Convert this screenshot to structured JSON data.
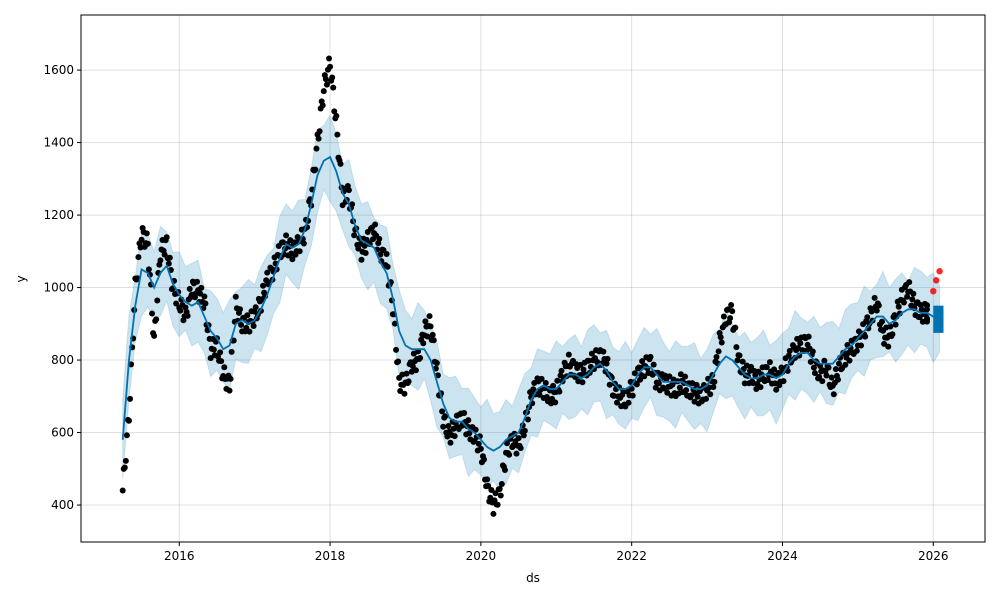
{
  "chart_data": {
    "type": "line",
    "title": "",
    "xlabel": "ds",
    "ylabel": "y",
    "xlim": [
      "2014-09-12",
      "2026-09-08"
    ],
    "ylim": [
      298,
      1752
    ],
    "grid": true,
    "x_ticks": [
      "2016",
      "2018",
      "2020",
      "2022",
      "2024",
      "2026"
    ],
    "y_ticks": [
      400,
      600,
      800,
      1000,
      1200,
      1400,
      1600
    ],
    "colors": {
      "observed": "#000000",
      "test": "#ff0000",
      "forecast": "#0072b2",
      "interval": "#0072b2"
    },
    "interval_halfwidth": 105,
    "observed": {
      "2015-04": 440,
      "2015-05": 650,
      "2015-06": 1000,
      "2015-07": 1150,
      "2015-08": 1120,
      "2015-09": 850,
      "2015-10": 1100,
      "2015-11": 1120,
      "2015-12": 1000,
      "2016-01": 960,
      "2016-02": 920,
      "2016-03": 1000,
      "2016-04": 990,
      "2016-05": 960,
      "2016-06": 830,
      "2016-07": 840,
      "2016-08": 760,
      "2016-09": 730,
      "2016-10": 950,
      "2016-11": 900,
      "2016-12": 900,
      "2017-01": 920,
      "2017-02": 960,
      "2017-03": 1020,
      "2017-04": 1050,
      "2017-05": 1100,
      "2017-06": 1120,
      "2017-07": 1100,
      "2017-08": 1120,
      "2017-09": 1150,
      "2017-10": 1250,
      "2017-11": 1400,
      "2017-12": 1550,
      "2018-01": 1620,
      "2018-02": 1450,
      "2018-03": 1250,
      "2018-04": 1260,
      "2018-05": 1150,
      "2018-06": 1100,
      "2018-07": 1130,
      "2018-08": 1160,
      "2018-09": 1100,
      "2018-10": 1070,
      "2018-11": 950,
      "2018-12": 740,
      "2019-01": 730,
      "2019-02": 790,
      "2019-03": 800,
      "2019-04": 880,
      "2019-05": 900,
      "2019-06": 770,
      "2019-07": 640,
      "2019-08": 590,
      "2019-09": 620,
      "2019-10": 640,
      "2019-11": 610,
      "2019-12": 590,
      "2020-01": 560,
      "2020-02": 450,
      "2020-03": 400,
      "2020-04": 430,
      "2020-05": 540,
      "2020-06": 580,
      "2020-07": 560,
      "2020-08": 620,
      "2020-09": 700,
      "2020-10": 730,
      "2020-11": 720,
      "2020-12": 700,
      "2021-01": 710,
      "2021-02": 760,
      "2021-03": 790,
      "2021-04": 770,
      "2021-05": 760,
      "2021-06": 780,
      "2021-07": 800,
      "2021-08": 810,
      "2021-09": 790,
      "2021-10": 720,
      "2021-11": 700,
      "2021-12": 690,
      "2022-01": 720,
      "2022-02": 760,
      "2022-03": 780,
      "2022-04": 790,
      "2022-05": 740,
      "2022-06": 740,
      "2022-07": 730,
      "2022-08": 720,
      "2022-09": 740,
      "2022-10": 720,
      "2022-11": 710,
      "2022-12": 700,
      "2023-01": 720,
      "2023-02": 740,
      "2023-03": 850,
      "2023-04": 920,
      "2023-05": 930,
      "2023-06": 800,
      "2023-07": 760,
      "2023-08": 760,
      "2023-09": 740,
      "2023-10": 760,
      "2023-11": 770,
      "2023-12": 740,
      "2024-01": 760,
      "2024-02": 800,
      "2024-03": 830,
      "2024-04": 840,
      "2024-05": 850,
      "2024-06": 790,
      "2024-07": 760,
      "2024-08": 780,
      "2024-09": 720,
      "2024-10": 780,
      "2024-11": 810,
      "2024-12": 830,
      "2025-01": 850,
      "2025-02": 880,
      "2025-03": 920,
      "2025-04": 960,
      "2025-05": 870,
      "2025-06": 860,
      "2025-07": 920,
      "2025-08": 970,
      "2025-09": 1000,
      "2025-10": 950,
      "2025-11": 930,
      "2025-12": 930
    },
    "test": {
      "2026-01": 990,
      "2026-01-15": 1020,
      "2026-02": 1045
    },
    "yhat": {
      "2015-04": 580,
      "2015-05": 800,
      "2015-06": 950,
      "2015-07": 1050,
      "2015-08": 1040,
      "2015-09": 1000,
      "2015-10": 1040,
      "2015-11": 1060,
      "2015-12": 1010,
      "2016-01": 980,
      "2016-02": 960,
      "2016-03": 950,
      "2016-04": 960,
      "2016-05": 920,
      "2016-06": 880,
      "2016-07": 860,
      "2016-08": 830,
      "2016-09": 840,
      "2016-10": 900,
      "2016-11": 910,
      "2016-12": 900,
      "2017-01": 910,
      "2017-02": 940,
      "2017-03": 980,
      "2017-04": 1030,
      "2017-05": 1080,
      "2017-06": 1120,
      "2017-07": 1110,
      "2017-08": 1120,
      "2017-09": 1160,
      "2017-10": 1230,
      "2017-11": 1310,
      "2017-12": 1350,
      "2018-01": 1360,
      "2018-02": 1320,
      "2018-03": 1260,
      "2018-04": 1230,
      "2018-05": 1170,
      "2018-06": 1130,
      "2018-07": 1120,
      "2018-08": 1110,
      "2018-09": 1070,
      "2018-10": 1040,
      "2018-11": 970,
      "2018-12": 880,
      "2019-01": 840,
      "2019-02": 830,
      "2019-03": 830,
      "2019-04": 830,
      "2019-05": 800,
      "2019-06": 740,
      "2019-07": 680,
      "2019-08": 640,
      "2019-09": 630,
      "2019-10": 630,
      "2019-11": 610,
      "2019-12": 600,
      "2020-01": 580,
      "2020-02": 560,
      "2020-03": 550,
      "2020-04": 560,
      "2020-05": 580,
      "2020-06": 590,
      "2020-07": 600,
      "2020-08": 640,
      "2020-09": 690,
      "2020-10": 720,
      "2020-11": 730,
      "2020-12": 720,
      "2021-01": 720,
      "2021-02": 740,
      "2021-03": 760,
      "2021-04": 760,
      "2021-05": 750,
      "2021-06": 760,
      "2021-07": 780,
      "2021-08": 790,
      "2021-09": 770,
      "2021-10": 740,
      "2021-11": 720,
      "2021-12": 720,
      "2022-01": 730,
      "2022-02": 760,
      "2022-03": 780,
      "2022-04": 780,
      "2022-05": 760,
      "2022-06": 740,
      "2022-07": 740,
      "2022-08": 740,
      "2022-09": 740,
      "2022-10": 730,
      "2022-11": 720,
      "2022-12": 720,
      "2023-01": 730,
      "2023-02": 760,
      "2023-03": 790,
      "2023-04": 810,
      "2023-05": 800,
      "2023-06": 780,
      "2023-07": 760,
      "2023-08": 750,
      "2023-09": 750,
      "2023-10": 760,
      "2023-11": 760,
      "2023-12": 750,
      "2024-01": 760,
      "2024-02": 790,
      "2024-03": 810,
      "2024-04": 820,
      "2024-05": 820,
      "2024-06": 800,
      "2024-07": 790,
      "2024-08": 790,
      "2024-09": 790,
      "2024-10": 810,
      "2024-11": 830,
      "2024-12": 840,
      "2025-01": 860,
      "2025-02": 880,
      "2025-03": 900,
      "2025-04": 920,
      "2025-05": 920,
      "2025-06": 900,
      "2025-07": 910,
      "2025-08": 930,
      "2025-09": 940,
      "2025-10": 940,
      "2025-11": 930,
      "2025-12": 930,
      "2026-01": 920,
      "2026-02": 920
    },
    "forecast_range": {
      "start": "2026-01-01",
      "end": "2026-02-20",
      "low": 875,
      "high": 950
    }
  }
}
